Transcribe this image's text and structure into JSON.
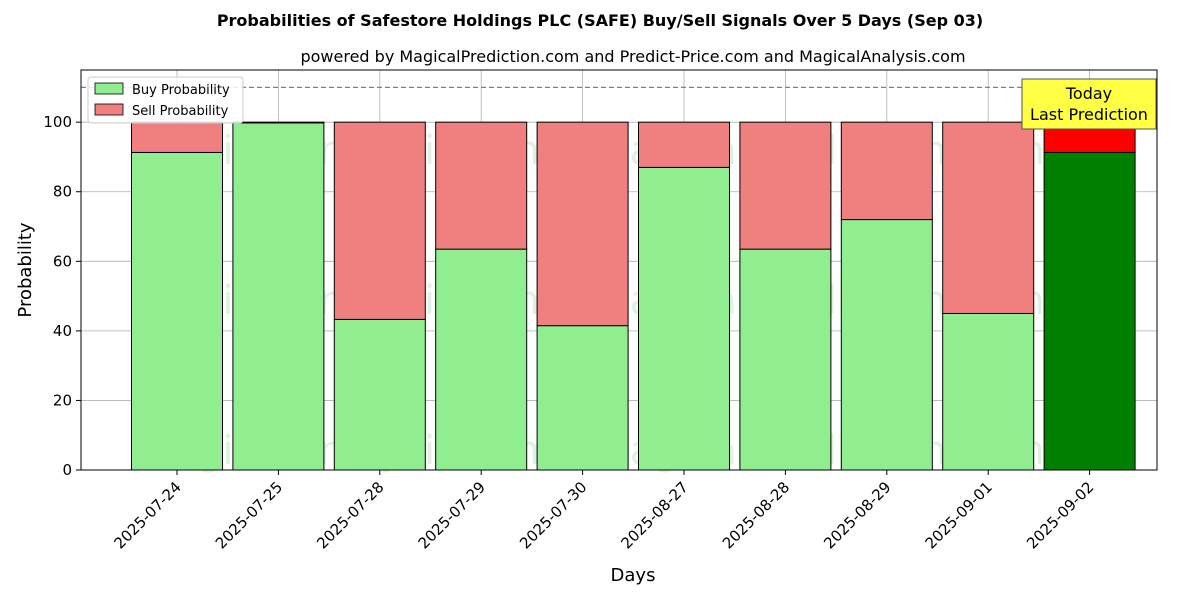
{
  "chart_data": {
    "type": "bar",
    "stacked": true,
    "title": "Probabilities of Safestore Holdings PLC (SAFE) Buy/Sell Signals Over 5 Days (Sep 03)",
    "subtitle": "powered by MagicalPrediction.com and Predict-Price.com and MagicalAnalysis.com",
    "xlabel": "Days",
    "ylabel": "Probability",
    "ylim": [
      0,
      115
    ],
    "yticks": [
      0,
      20,
      40,
      60,
      80,
      100
    ],
    "reference_line": 110,
    "grid": true,
    "legend_position": "top-left",
    "categories": [
      "2025-07-24",
      "2025-07-25",
      "2025-07-28",
      "2025-07-29",
      "2025-07-30",
      "2025-08-27",
      "2025-08-28",
      "2025-08-29",
      "2025-09-01",
      "2025-09-02"
    ],
    "series": [
      {
        "name": "Buy Probability",
        "values": [
          91.3,
          99.8,
          43.3,
          63.5,
          41.5,
          87.0,
          63.5,
          72.0,
          45.0,
          91.3
        ]
      },
      {
        "name": "Sell Probability",
        "values": [
          8.7,
          0.2,
          56.7,
          36.5,
          58.5,
          13.0,
          36.5,
          28.0,
          55.0,
          8.7
        ]
      }
    ],
    "annotation": {
      "line1": "Today",
      "line2": "Last Prediction",
      "category": "2025-09-02"
    },
    "watermarks": [
      "MagicalAnalysis.com",
      "MagicalPrediction.com",
      "MagicalAnalysis.com",
      "MagicalPrediction.com",
      "MagicalAnalysis.com",
      "MagicalPrediction.com"
    ]
  },
  "colors": {
    "buy": "#90EE90",
    "sell": "#F08080",
    "buy_today": "#008000",
    "sell_today": "#FF0000",
    "annotation_bg": "#FFFF44",
    "grid": "#B0B0B0"
  }
}
